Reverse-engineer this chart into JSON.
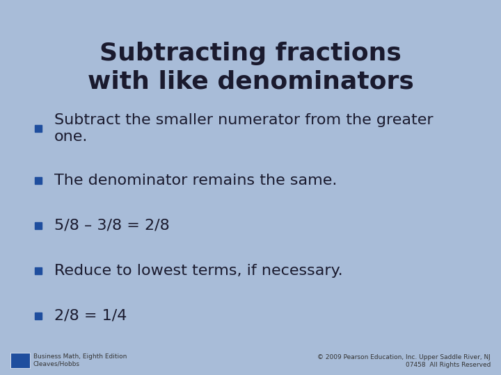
{
  "title_line1": "Subtracting fractions",
  "title_line2": "with like denominators",
  "background_color": "#a8bcd8",
  "title_color": "#1a1a2e",
  "bullet_color": "#1f4e9e",
  "text_color": "#1a1a2e",
  "bullet_items": [
    "Subtract the smaller numerator from the greater\none.",
    "The denominator remains the same.",
    "5/8 – 3/8 = 2/8",
    "Reduce to lowest terms, if necessary.",
    "2/8 = 1/4"
  ],
  "footer_left_line1": "Business Math, Eighth Edition",
  "footer_left_line2": "Cleaves/Hobbs",
  "footer_right": "© 2009 Pearson Education, Inc. Upper Saddle River, NJ\n07458  All Rights Reserved",
  "title_fontsize": 26,
  "bullet_fontsize": 16,
  "footer_fontsize": 6.5,
  "fig_width": 7.2,
  "fig_height": 5.4,
  "dpi": 100
}
